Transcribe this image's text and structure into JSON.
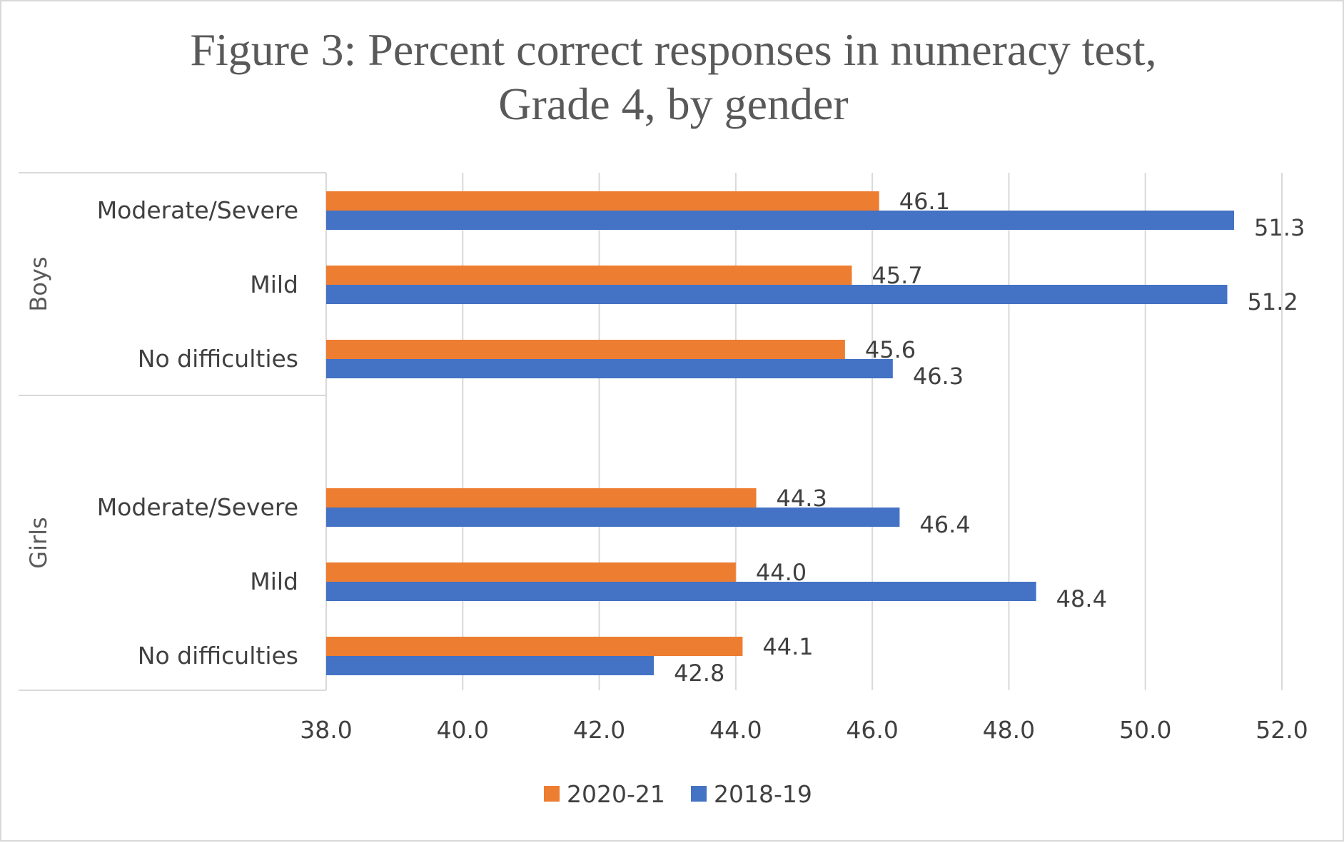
{
  "chart_data": {
    "type": "bar",
    "orientation": "horizontal",
    "title_lines": [
      "Figure 3: Percent correct responses in numeracy test,",
      "Grade 4, by gender"
    ],
    "groups": [
      {
        "label": "Boys",
        "categories": [
          "Moderate/Severe",
          "Mild",
          "No difficulties"
        ]
      },
      {
        "label": "Girls",
        "categories": [
          "Moderate/Severe",
          "Mild",
          "No difficulties"
        ]
      }
    ],
    "series": [
      {
        "name": "2020-21",
        "color": "#ed7d31",
        "values": [
          46.1,
          45.7,
          45.6,
          44.3,
          44.0,
          44.1
        ]
      },
      {
        "name": "2018-19",
        "color": "#4472c4",
        "values": [
          51.3,
          51.2,
          46.3,
          46.4,
          48.4,
          42.8
        ]
      }
    ],
    "xlim": [
      38.0,
      52.0
    ],
    "xticks": [
      "38.0",
      "40.0",
      "42.0",
      "44.0",
      "46.0",
      "48.0",
      "50.0",
      "52.0"
    ],
    "grid": true,
    "legend_position": "bottom"
  }
}
